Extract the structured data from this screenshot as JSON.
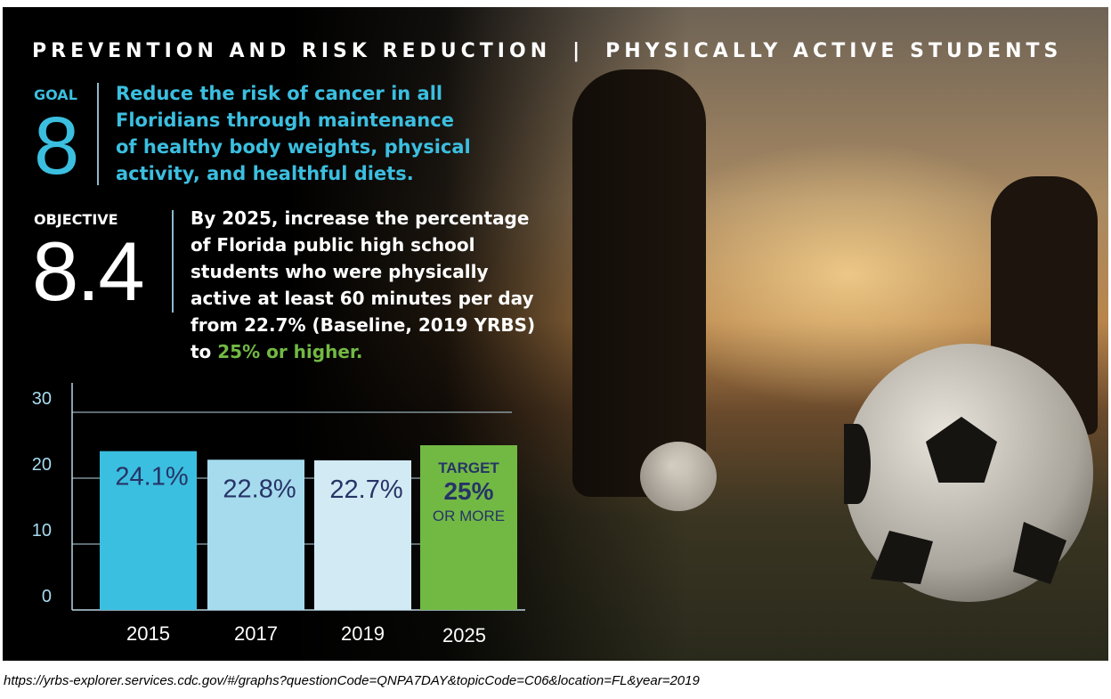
{
  "header": {
    "section": "PREVENTION AND RISK REDUCTION",
    "separator": "|",
    "topic": "PHYSICALLY ACTIVE STUDENTS"
  },
  "goal": {
    "label": "GOAL",
    "number": "8",
    "text": "Reduce the risk of cancer in all Floridians through maintenance of healthy body weights, physical activity, and healthful diets."
  },
  "objective": {
    "label": "OBJECTIVE",
    "number": "8.4",
    "text_main": "By 2025, increase the percentage of Florida public high school students who were physically active at least 60 minutes per day from 22.7% (Baseline, 2019 YRBS) to ",
    "text_highlight": "25% or higher."
  },
  "colors": {
    "goal": "#3bbfe0",
    "highlight": "#72b944",
    "bar_text": "#263466"
  },
  "chart_data": {
    "type": "bar",
    "title": "",
    "xlabel": "",
    "ylabel": "",
    "ylim": [
      0,
      30
    ],
    "yticks": [
      "0",
      "10",
      "20",
      "30"
    ],
    "categories": [
      "2015",
      "2017",
      "2019",
      "2025"
    ],
    "values": [
      24.1,
      22.8,
      22.7,
      25
    ],
    "labels": [
      "24.1%",
      "22.8%",
      "22.7%",
      ""
    ],
    "bar_colors": [
      "#3bbfe0",
      "#a6dbee",
      "#d2eaf4",
      "#72b944"
    ],
    "target": {
      "line1": "TARGET",
      "line2": "25%",
      "line3": "OR MORE"
    },
    "grid": true
  },
  "source": "https://yrbs-explorer.services.cdc.gov/#/graphs?questionCode=QNPA7DAY&topicCode=C06&location=FL&year=2019"
}
